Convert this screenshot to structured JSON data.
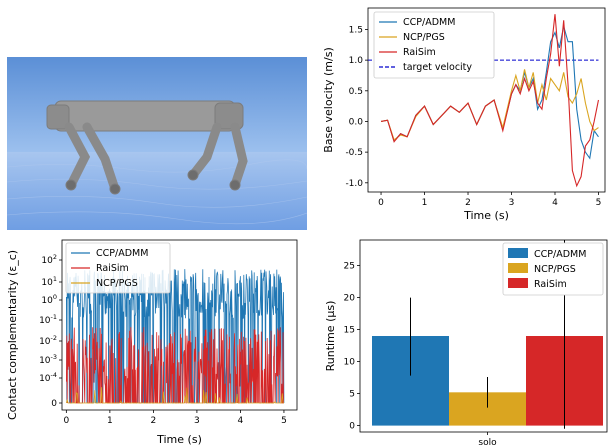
{
  "colors": {
    "ccp": "#1f77b4",
    "ncp": "#daa520",
    "raisim": "#d62728",
    "target": "#0000cc"
  },
  "velocity": {
    "type": "line",
    "ylabel": "Base velocity (m/s)",
    "xlabel": "Time (s)",
    "xlim": [
      -0.3,
      5.15
    ],
    "ylim": [
      -1.15,
      1.85
    ],
    "xticks": [
      0,
      1,
      2,
      3,
      4,
      5
    ],
    "yticks": [
      -1.0,
      -0.5,
      0.0,
      0.5,
      1.0,
      1.5
    ],
    "legend": [
      "CCP/ADMM",
      "NCP/PGS",
      "RaiSim",
      "target velocity"
    ],
    "target": 1.0,
    "series": [
      {
        "name": "CCP/ADMM",
        "x": [
          0,
          0.15,
          0.3,
          0.45,
          0.6,
          0.8,
          1.0,
          1.2,
          1.4,
          1.6,
          1.8,
          2.0,
          2.2,
          2.4,
          2.6,
          2.8,
          3.0,
          3.1,
          3.2,
          3.3,
          3.4,
          3.5,
          3.6,
          3.7,
          3.8,
          3.9,
          4.0,
          4.1,
          4.2,
          4.3,
          4.4,
          4.5,
          4.6,
          4.7,
          4.8,
          4.9,
          5.0
        ],
        "y": [
          0,
          0.02,
          -0.32,
          -0.2,
          -0.25,
          0.1,
          0.25,
          -0.05,
          0.1,
          0.25,
          0.15,
          0.3,
          -0.05,
          0.25,
          0.35,
          -0.12,
          0.45,
          0.6,
          0.5,
          0.8,
          0.55,
          0.7,
          0.2,
          0.35,
          0.8,
          1.3,
          1.45,
          1.2,
          1.55,
          1.3,
          1.3,
          0.2,
          -0.3,
          -0.5,
          -0.6,
          -0.15,
          -0.25
        ]
      },
      {
        "name": "NCP/PGS",
        "x": [
          0,
          0.15,
          0.3,
          0.45,
          0.6,
          0.8,
          1.0,
          1.2,
          1.4,
          1.6,
          1.8,
          2.0,
          2.2,
          2.4,
          2.6,
          2.8,
          3.0,
          3.1,
          3.2,
          3.3,
          3.4,
          3.5,
          3.6,
          3.7,
          3.8,
          3.9,
          4.0,
          4.1,
          4.2,
          4.3,
          4.4,
          4.5,
          4.6,
          4.7,
          4.8,
          4.9,
          5.0
        ],
        "y": [
          0,
          0.02,
          -0.3,
          -0.22,
          -0.25,
          0.08,
          0.25,
          -0.05,
          0.1,
          0.25,
          0.15,
          0.3,
          -0.05,
          0.25,
          0.35,
          -0.1,
          0.5,
          0.75,
          0.5,
          0.85,
          0.55,
          0.8,
          0.3,
          0.6,
          0.35,
          0.7,
          0.6,
          0.5,
          0.8,
          0.4,
          0.3,
          0.45,
          0.7,
          0.3,
          0.0,
          -0.15,
          -0.1
        ]
      },
      {
        "name": "RaiSim",
        "x": [
          0,
          0.15,
          0.3,
          0.45,
          0.6,
          0.8,
          1.0,
          1.2,
          1.4,
          1.6,
          1.8,
          2.0,
          2.2,
          2.4,
          2.6,
          2.8,
          3.0,
          3.1,
          3.2,
          3.3,
          3.4,
          3.5,
          3.6,
          3.7,
          3.8,
          3.9,
          4.0,
          4.1,
          4.2,
          4.3,
          4.4,
          4.5,
          4.6,
          4.7,
          4.8,
          4.9,
          5.0
        ],
        "y": [
          0,
          0.02,
          -0.33,
          -0.2,
          -0.25,
          0.1,
          0.25,
          -0.05,
          0.1,
          0.25,
          0.15,
          0.3,
          -0.05,
          0.25,
          0.35,
          -0.15,
          0.45,
          0.6,
          0.45,
          0.7,
          0.5,
          0.65,
          0.3,
          0.2,
          0.7,
          1.1,
          1.75,
          0.9,
          1.65,
          0.6,
          -0.8,
          -1.05,
          -0.9,
          -0.4,
          -0.3,
          0.0,
          0.35
        ]
      }
    ]
  },
  "complementarity": {
    "type": "line",
    "ylabel": "Contact complementarity (ε_c)",
    "xlabel": "Time (s)",
    "xlim": [
      -0.1,
      5.3
    ],
    "xticks": [
      0,
      1,
      2,
      3,
      4,
      5
    ],
    "ytick_labels": [
      "0",
      "10^-4",
      "10^-3",
      "10^-2",
      "10^-1",
      "10^0",
      "10^1",
      "10^2"
    ],
    "legend": [
      "CCP/ADMM",
      "RaiSim",
      "NCP/PGS"
    ]
  },
  "runtime": {
    "type": "bar",
    "ylabel": "Runtime (μs)",
    "category": "solo",
    "ylim": [
      -1,
      29
    ],
    "yticks": [
      0,
      5,
      10,
      15,
      20,
      25
    ],
    "legend": [
      "CCP/ADMM",
      "NCP/PGS",
      "RaiSim"
    ],
    "bars": [
      {
        "name": "CCP/ADMM",
        "value": 14,
        "err_low": 7.8,
        "err_high": 20
      },
      {
        "name": "NCP/PGS",
        "value": 5.2,
        "err_low": 2.8,
        "err_high": 7.6
      },
      {
        "name": "RaiSim",
        "value": 14,
        "err_low": -0.5,
        "err_high": 29
      }
    ]
  }
}
